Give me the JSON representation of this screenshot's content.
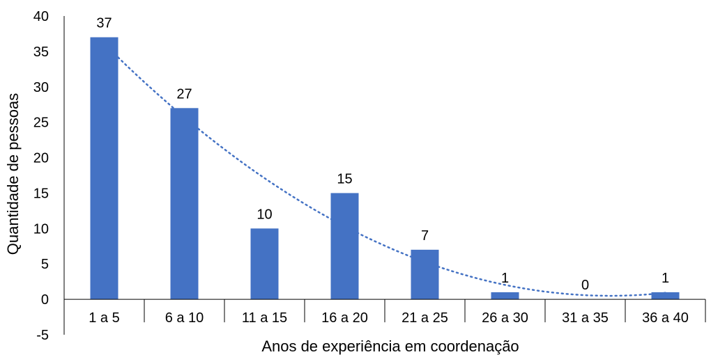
{
  "chart_data": {
    "type": "bar",
    "title": "",
    "xlabel": "Anos de experiência em coordenação",
    "ylabel": "Quantidade de pessoas",
    "categories": [
      "1 a 5",
      "6 a 10",
      "11 a 15",
      "16 a 20",
      "21 a 25",
      "26 a 30",
      "31 a 35",
      "36 a 40"
    ],
    "series": [
      {
        "values": [
          37,
          27,
          10,
          15,
          7,
          1,
          0,
          1
        ],
        "color": "#4472C4"
      }
    ],
    "trendline": {
      "type": "polynomial",
      "style": "dotted",
      "color": "#4472C4"
    },
    "ylim": [
      -5,
      40
    ],
    "yticks": [
      "-5",
      "0",
      "5",
      "10",
      "15",
      "20",
      "25",
      "30",
      "35",
      "40"
    ],
    "data_labels": [
      "37",
      "27",
      "10",
      "15",
      "7",
      "1",
      "0",
      "1"
    ],
    "grid": false,
    "legend": "none"
  }
}
